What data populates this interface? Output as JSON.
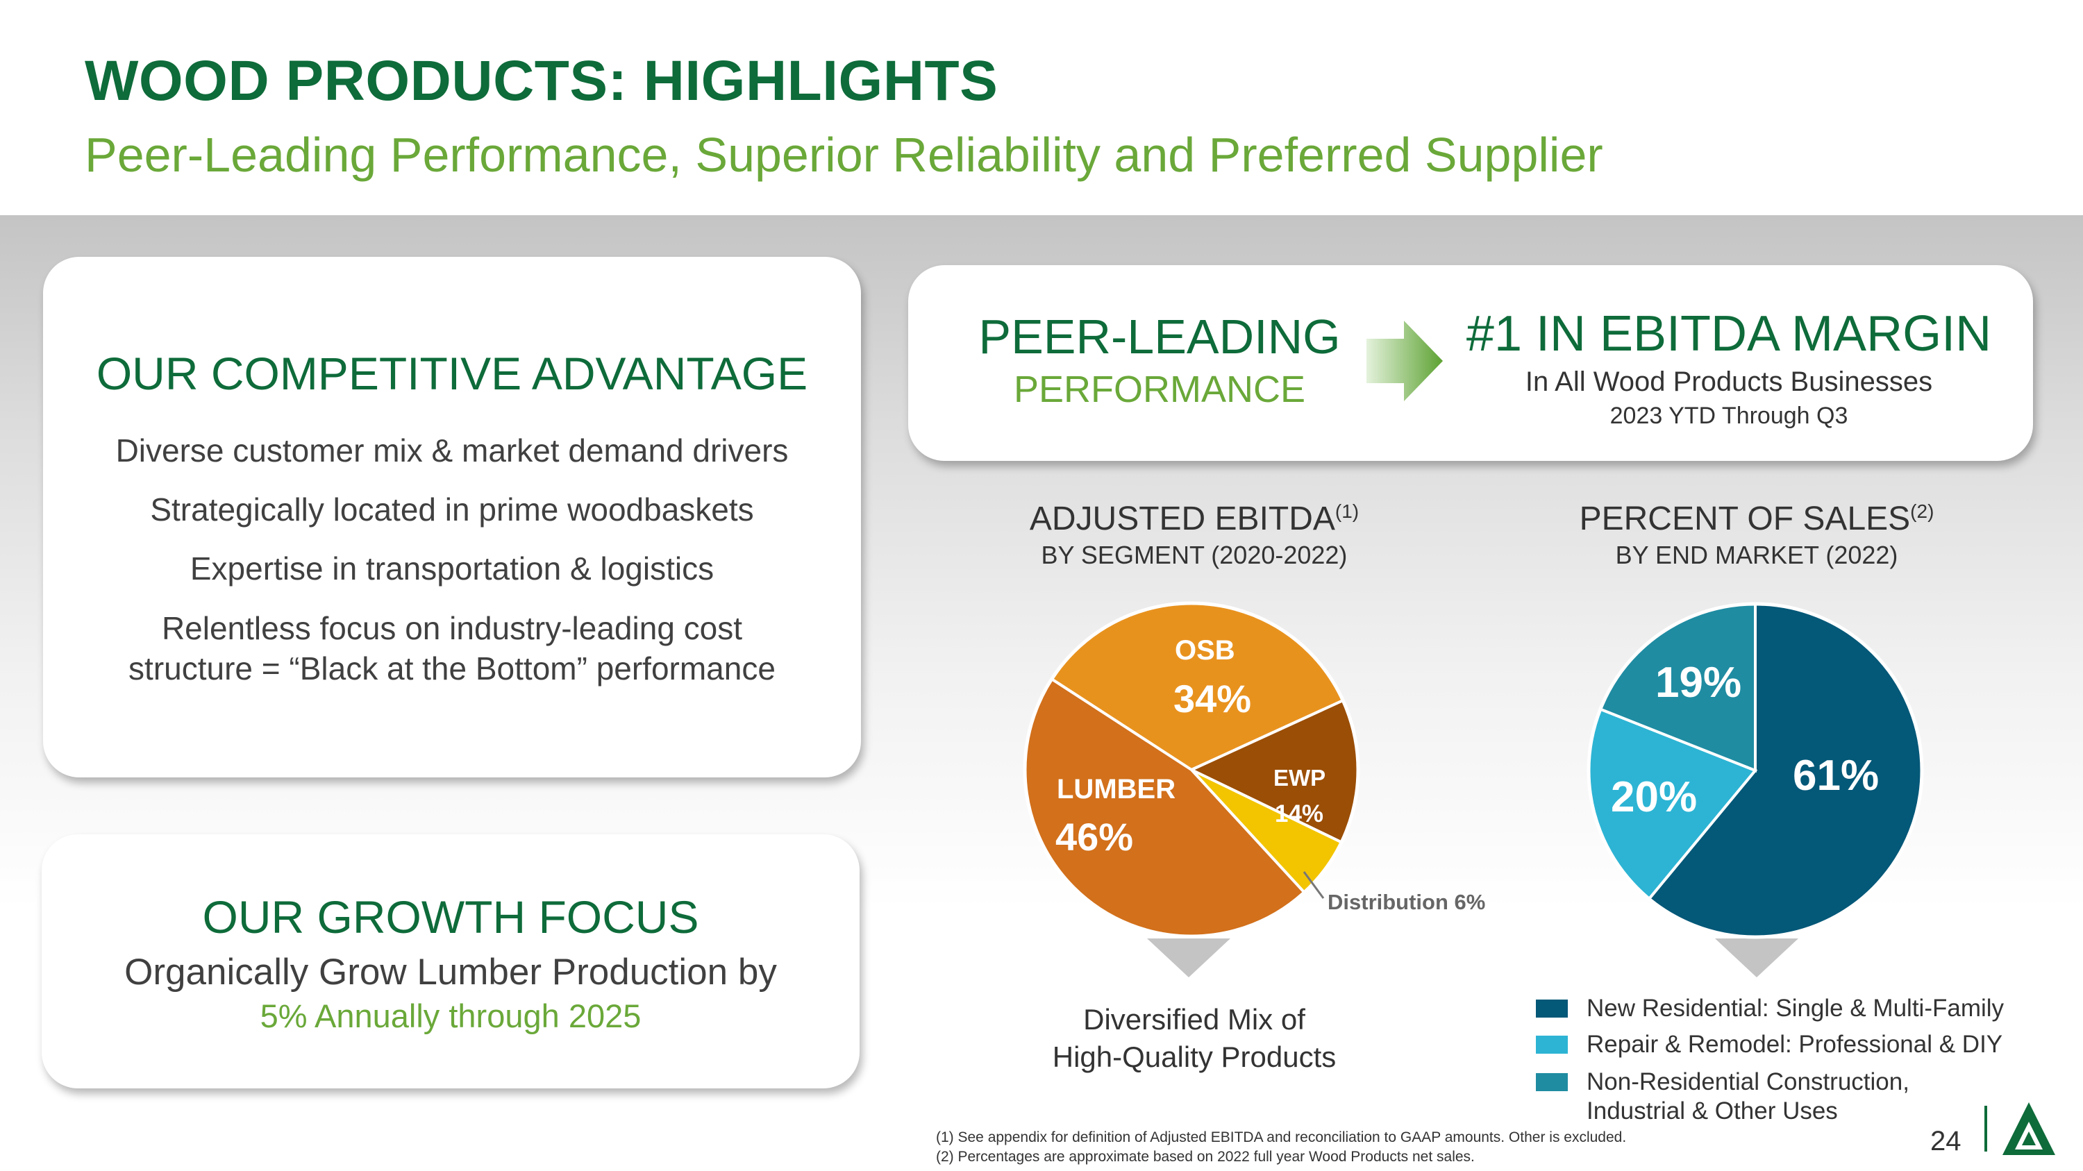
{
  "header": {
    "title": "WOOD PRODUCTS: HIGHLIGHTS",
    "subtitle": "Peer-Leading Performance, Superior Reliability and Preferred Supplier"
  },
  "advantage": {
    "heading": "OUR COMPETITIVE ADVANTAGE",
    "points": [
      "Diverse customer mix & market demand drivers",
      "Strategically located in prime woodbaskets",
      "Expertise in transportation & logistics",
      "Relentless focus on industry-leading cost",
      "structure = “Black at the Bottom” performance"
    ]
  },
  "growth": {
    "heading": "OUR GROWTH FOCUS",
    "line1": "Organically Grow Lumber Production by",
    "line2": "5% Annually through 2025"
  },
  "peer": {
    "heading": "PEER-LEADING",
    "sub": "PERFORMANCE",
    "result_heading": "#1 IN EBITDA MARGIN",
    "result_sub": "In All Wood Products Businesses",
    "result_period": "2023 YTD Through Q3"
  },
  "chart_data": [
    {
      "type": "pie",
      "title": "ADJUSTED EBITDA",
      "title_footnote": "(1)",
      "subtitle": "BY SEGMENT (2020-2022)",
      "slices": [
        {
          "label": "OSB",
          "value": 34,
          "display": "34%",
          "color": "#e8921e"
        },
        {
          "label": "EWP",
          "value": 14,
          "display": "14%",
          "color": "#9b4e06"
        },
        {
          "label": "Distribution 6%",
          "value": 6,
          "display": "",
          "color": "#f3c400"
        },
        {
          "label": "LUMBER",
          "value": 46,
          "display": "46%",
          "color": "#d2701b"
        }
      ],
      "caption": [
        "Diversified Mix of",
        "High-Quality Products"
      ]
    },
    {
      "type": "pie",
      "title": "PERCENT OF SALES",
      "title_footnote": "(2)",
      "subtitle": "BY END MARKET (2022)",
      "slices": [
        {
          "label": "New Residential: Single & Multi-Family",
          "value": 61,
          "display": "61%",
          "color": "#045878"
        },
        {
          "label": "Repair & Remodel: Professional & DIY",
          "value": 20,
          "display": "20%",
          "color": "#2db4d4"
        },
        {
          "label": "Non-Residential Construction, Industrial & Other Uses",
          "value": 19,
          "display": "19%",
          "color": "#1f8ca2"
        }
      ],
      "legend": [
        {
          "lines": [
            "New Residential: Single & Multi-Family"
          ],
          "color": "#045878"
        },
        {
          "lines": [
            "Repair & Remodel: Professional & DIY"
          ],
          "color": "#2db4d4"
        },
        {
          "lines": [
            "Non-Residential Construction,",
            "Industrial & Other Uses"
          ],
          "color": "#1f8ca2"
        }
      ]
    }
  ],
  "footnotes": [
    "(1) See appendix for definition of Adjusted EBITDA and reconciliation to GAAP amounts. Other is excluded.",
    "(2) Percentages are approximate based on 2022 full year Wood Products net sales."
  ],
  "page_number": "24",
  "colors": {
    "dark_green": "#0e6b3a",
    "light_green": "#6aa839"
  }
}
